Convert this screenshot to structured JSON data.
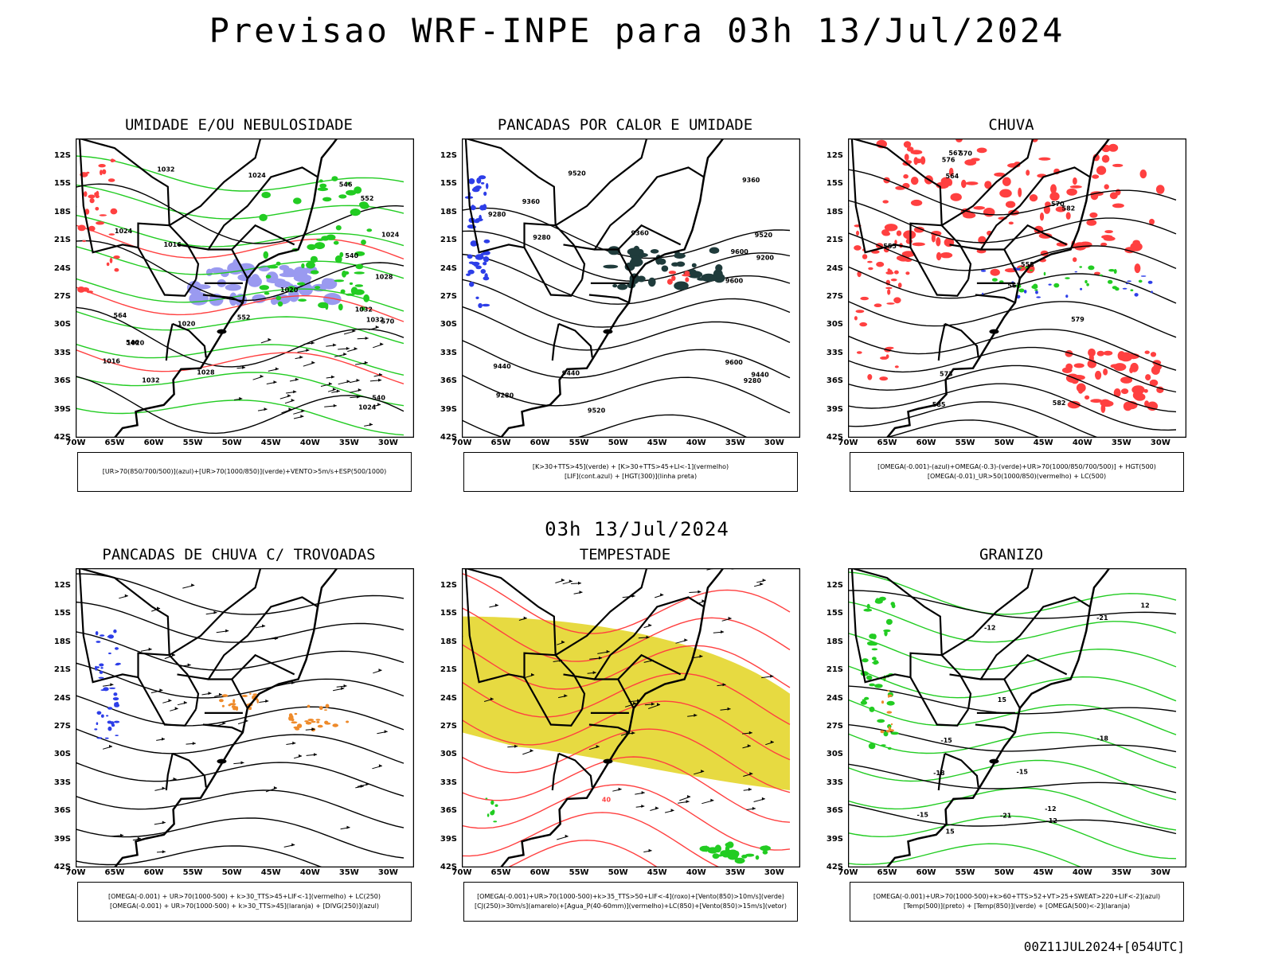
{
  "title": "Previsao WRF-INPE  para 03h 13/Jul/2024",
  "mid_date": "03h 13/Jul/2024",
  "footer": "00Z11JUL2024+[054UTC]",
  "axes": {
    "lat": [
      "12S",
      "15S",
      "18S",
      "21S",
      "24S",
      "27S",
      "30S",
      "33S",
      "36S",
      "39S",
      "42S"
    ],
    "lon": [
      "70W",
      "65W",
      "60W",
      "55W",
      "50W",
      "45W",
      "40W",
      "35W",
      "30W"
    ]
  },
  "colors": {
    "frame": "#000000",
    "humidity_blue": "#9a9af0",
    "green": "#22cc22",
    "red": "#ff4040",
    "blue": "#2d3ee8",
    "dark_teal": "#1f3b3b",
    "orange": "#ee8a2a",
    "yellow": "#e4d62c"
  },
  "panels": [
    {
      "id": "umidade",
      "title": "UMIDADE E/OU NEBULOSIDADE",
      "legend": [
        "[UR>70(850/700/500)](azul)+[UR>70(1000/850)](verde)+VENTO>5m/s+ESP(500/1000)"
      ],
      "contour_labels": [
        "1016",
        "1020",
        "1024",
        "1028",
        "1032",
        "1028",
        "1024",
        "1020",
        "1032",
        "1032",
        "1024",
        "1016",
        "1020",
        "1024",
        "1032",
        "552",
        "570",
        "564",
        "546",
        "540",
        "552",
        "546",
        "540"
      ]
    },
    {
      "id": "pancadas_calor",
      "title": "PANCADAS POR CALOR E UMIDADE",
      "legend": [
        "[K>30+TTS>45](verde)  +  [K>30+TTS>45+LI<-1](vermelho)",
        "[LIF](cont.azul)  +  [HGT(300)](linha preta)"
      ],
      "contour_labels": [
        "9600",
        "9520",
        "9440",
        "9360",
        "9280",
        "9520",
        "9600",
        "9440",
        "9360",
        "9280",
        "9200",
        "9280",
        "9600",
        "9520",
        "9440",
        "9360",
        "9280"
      ]
    },
    {
      "id": "chuva",
      "title": "CHUVA",
      "legend": [
        "[OMEGA(-0.001)-(azul)+OMEGA(-0.3)-(verde)+UR>70(1000/850/700/500)]  +  HGT(500)",
        "[OMEGA(-0.01)_UR>50(1000/850)(vermelho)  +  LC(500)"
      ],
      "contour_labels": [
        "585",
        "582",
        "579",
        "576",
        "573",
        "570",
        "567",
        "564",
        "567",
        "570",
        "555",
        "558",
        "582"
      ]
    },
    {
      "id": "pancadas_trovoadas",
      "title": "PANCADAS DE CHUVA C/ TROVOADAS",
      "legend": [
        "[OMEGA(-0.001)  +  UR>70(1000-500)  +  k>30_TTS>45+LIF<-1](vermelho)  +  LC(250)",
        "[OMEGA(-0.001)  +  UR>70(1000-500)  +  k>30_TTS>45](laranja)  +  [DIVG(250)](azul)"
      ],
      "contour_labels": []
    },
    {
      "id": "tempestade",
      "title": "TEMPESTADE",
      "legend": [
        "[OMEGA(-0.001)+UR>70(1000-500)+k>35_TTS>50+LIF<-4](roxo)+[Vento(850)>10m/s](verde)",
        "[CJ(250)>30m/s](amarelo)+[Agua_P(40-60mm)](vermelho)+LC(850)+[Vento(850)>15m/s](vetor)"
      ],
      "contour_labels": [
        "40"
      ]
    },
    {
      "id": "granizo",
      "title": "GRANIZO",
      "legend": [
        "[OMEGA(-0.001)+UR>70(1000-500)+k>60+TTS>52+VT>25+SWEAT>220+LIF<-2](azul)",
        "[Temp(500)](preto)  +  [Temp(850)](verde)  +  [OMEGA(500)<-2](laranja)"
      ],
      "contour_labels": [
        "-12",
        "-15",
        "-18",
        "-21",
        "-12",
        "-15",
        "-12",
        "-15",
        "-18",
        "-21",
        "15",
        "15",
        "12"
      ]
    }
  ]
}
